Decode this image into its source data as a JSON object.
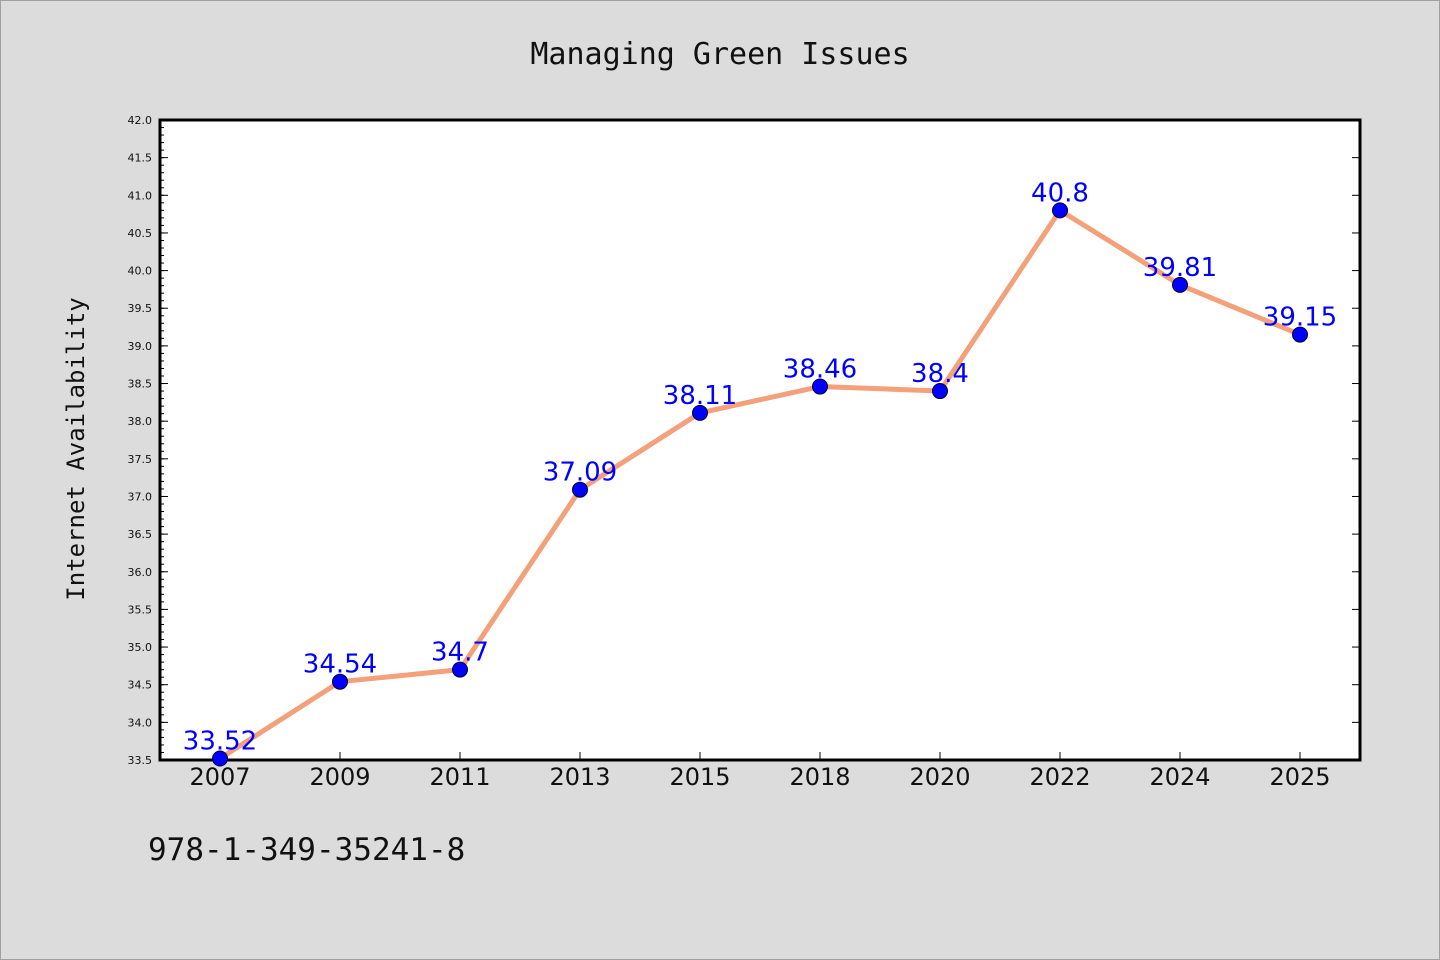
{
  "chart_data": {
    "type": "line",
    "title": "Managing Green Issues",
    "xlabel": "",
    "ylabel": "Internet Availability",
    "categories": [
      "2007",
      "2009",
      "2011",
      "2013",
      "2015",
      "2018",
      "2020",
      "2022",
      "2024",
      "2025"
    ],
    "values": [
      33.52,
      34.54,
      34.7,
      37.09,
      38.11,
      38.46,
      38.4,
      40.8,
      39.81,
      39.15
    ],
    "data_labels": [
      "33.52",
      "34.54",
      "34.7",
      "37.09",
      "38.11",
      "38.46",
      "38.4",
      "40.8",
      "39.81",
      "39.15"
    ],
    "ylim": [
      33.5,
      42.0
    ],
    "yticks": [
      "33.5",
      "34.0",
      "34.5",
      "35.0",
      "35.5",
      "36.0",
      "36.5",
      "37.0",
      "37.5",
      "38.0",
      "38.5",
      "39.0",
      "39.5",
      "40.0",
      "40.5",
      "41.0",
      "41.5",
      "42.0"
    ],
    "grid": false,
    "legend": "none",
    "colors": {
      "line": "#f4a07a",
      "marker": "#0000ff",
      "data_label": "#0000ff",
      "plot_background": "#ffffff",
      "figure_background": "#dcdcdc"
    }
  },
  "footer": {
    "isbn": "978-1-349-35241-8"
  }
}
